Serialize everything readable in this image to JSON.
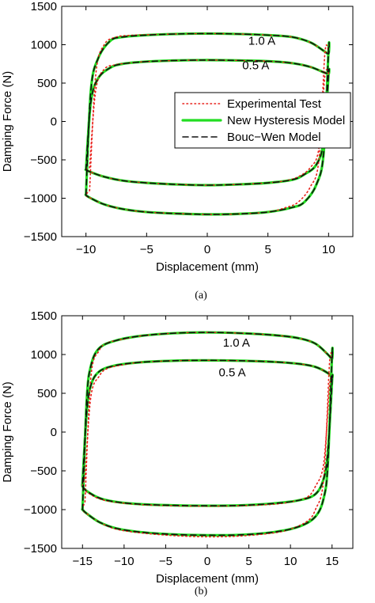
{
  "chart_data": [
    {
      "type": "line",
      "caption": "(a)",
      "xlabel": "Displacement (mm)",
      "ylabel": "Damping Force (N)",
      "xlim": [
        -12,
        12
      ],
      "ylim": [
        -1500,
        1500
      ],
      "xticks": [
        -10,
        -5,
        0,
        5,
        10
      ],
      "yticks": [
        -1500,
        -1000,
        -500,
        0,
        500,
        1000,
        1500
      ],
      "grid": false,
      "legend": {
        "placement": "right-middle",
        "entries": [
          "Experimental Test",
          "New Hysteresis Model",
          "Bouc−Wen Model"
        ]
      },
      "annotations": [
        {
          "text": "1.0 A",
          "x": 4.5,
          "y": 1000
        },
        {
          "text": "0.5 A",
          "x": 4.0,
          "y": 680
        }
      ],
      "colors": {
        "experimental": "#e8221b",
        "new_model": "#22dd22",
        "bouc_wen": "#111111"
      },
      "series": [
        {
          "name": "New Hysteresis Model",
          "current": "1.0 A",
          "upper": {
            "x": [
              -10,
              -9.6,
              -9,
              -8,
              -7,
              -5,
              -2.5,
              0,
              2.5,
              5,
              7,
              8.5,
              9.6,
              10
            ],
            "y": [
              -950,
              400,
              820,
              1050,
              1100,
              1125,
              1140,
              1145,
              1140,
              1125,
              1100,
              1030,
              920,
              880
            ]
          },
          "lower": {
            "x": [
              10,
              9.6,
              9,
              8,
              7,
              5,
              2.5,
              0,
              -2.5,
              -5,
              -7,
              -8.5,
              -9.6,
              -10
            ],
            "y": [
              950,
              -400,
              -820,
              -1050,
              -1120,
              -1180,
              -1205,
              -1210,
              -1200,
              -1180,
              -1140,
              -1080,
              -1000,
              -960
            ]
          }
        },
        {
          "name": "New Hysteresis Model",
          "current": "0.5 A",
          "upper": {
            "x": [
              -10,
              -9.6,
              -9,
              -8,
              -7,
              -5,
              -2.5,
              0,
              2.5,
              5,
              7,
              8.5,
              9.6,
              10
            ],
            "y": [
              -630,
              250,
              560,
              700,
              750,
              780,
              795,
              800,
              795,
              785,
              760,
              710,
              640,
              620
            ]
          },
          "lower": {
            "x": [
              10,
              9.6,
              9,
              8,
              7,
              5,
              2.5,
              0,
              -2.5,
              -5,
              -7,
              -8.5,
              -9.6,
              -10
            ],
            "y": [
              620,
              -250,
              -560,
              -690,
              -760,
              -800,
              -820,
              -830,
              -820,
              -800,
              -770,
              -720,
              -660,
              -630
            ]
          }
        },
        {
          "name": "Experimental Test",
          "current": "1.0 A",
          "upper": {
            "x": [
              -9.7,
              -9.2,
              -8.5,
              -7.5,
              -6.5,
              -5,
              -2.5,
              0,
              2.5,
              5,
              7,
              8.5,
              9.6,
              10
            ],
            "y": [
              -900,
              600,
              1000,
              1100,
              1120,
              1130,
              1140,
              1145,
              1140,
              1125,
              1100,
              1030,
              920,
              880
            ]
          },
          "lower": {
            "x": [
              9.7,
              9.2,
              8.5,
              7.5,
              6.5,
              5,
              2.5,
              0,
              -2.5,
              -5,
              -7,
              -8.5,
              -9.6,
              -10
            ],
            "y": [
              900,
              -500,
              -850,
              -1050,
              -1120,
              -1180,
              -1205,
              -1210,
              -1200,
              -1180,
              -1140,
              -1080,
              -1000,
              -960
            ]
          }
        },
        {
          "name": "Experimental Test",
          "current": "0.5 A",
          "upper": {
            "x": [
              -9.7,
              -9.2,
              -8.5,
              -7.5,
              -6.5,
              -5,
              -2.5,
              0,
              2.5,
              5,
              7,
              8.5,
              9.6,
              10
            ],
            "y": [
              -600,
              400,
              680,
              740,
              760,
              780,
              795,
              800,
              795,
              785,
              760,
              710,
              640,
              620
            ]
          },
          "lower": {
            "x": [
              9.7,
              9.2,
              8.5,
              7.5,
              6.5,
              5,
              2.5,
              0,
              -2.5,
              -5,
              -7,
              -8.5,
              -9.6,
              -10
            ],
            "y": [
              600,
              -350,
              -600,
              -720,
              -770,
              -800,
              -820,
              -830,
              -820,
              -800,
              -770,
              -720,
              -660,
              -630
            ]
          }
        },
        {
          "name": "Bouc−Wen Model",
          "current": "1.0 A",
          "upper": {
            "x": [
              -10,
              -9.6,
              -9,
              -8,
              -7,
              -5,
              -2.5,
              0,
              2.5,
              5,
              7,
              8.5,
              9.6,
              10
            ],
            "y": [
              -950,
              400,
              820,
              1050,
              1100,
              1125,
              1140,
              1145,
              1140,
              1125,
              1100,
              1030,
              920,
              880
            ]
          },
          "lower": {
            "x": [
              10,
              9.6,
              9,
              8,
              7,
              5,
              2.5,
              0,
              -2.5,
              -5,
              -7,
              -8.5,
              -9.6,
              -10
            ],
            "y": [
              950,
              -400,
              -820,
              -1050,
              -1120,
              -1180,
              -1205,
              -1210,
              -1200,
              -1180,
              -1140,
              -1080,
              -1000,
              -960
            ]
          }
        },
        {
          "name": "Bouc−Wen Model",
          "current": "0.5 A",
          "upper": {
            "x": [
              -10,
              -9.6,
              -9,
              -8,
              -7,
              -5,
              -2.5,
              0,
              2.5,
              5,
              7,
              8.5,
              9.6,
              10
            ],
            "y": [
              -630,
              250,
              560,
              700,
              750,
              780,
              795,
              800,
              795,
              785,
              760,
              710,
              640,
              620
            ]
          },
          "lower": {
            "x": [
              10,
              9.6,
              9,
              8,
              7,
              5,
              2.5,
              0,
              -2.5,
              -5,
              -7,
              -8.5,
              -9.6,
              -10
            ],
            "y": [
              620,
              -250,
              -560,
              -690,
              -760,
              -800,
              -820,
              -830,
              -820,
              -800,
              -770,
              -720,
              -660,
              -630
            ]
          }
        }
      ]
    },
    {
      "type": "line",
      "caption": "(b)",
      "xlabel": "Displacement (mm)",
      "ylabel": "Damping Force (N)",
      "xlim": [
        -17.5,
        17.5
      ],
      "ylim": [
        -1500,
        1500
      ],
      "xticks": [
        -15,
        -10,
        -5,
        0,
        5,
        10,
        15
      ],
      "yticks": [
        -1500,
        -1000,
        -500,
        0,
        500,
        1000,
        1500
      ],
      "grid": false,
      "annotations": [
        {
          "text": "1.0 A",
          "x": 3.5,
          "y": 1100
        },
        {
          "text": "0.5 A",
          "x": 3.0,
          "y": 720
        }
      ],
      "colors": {
        "experimental": "#e8221b",
        "new_model": "#22dd22",
        "bouc_wen": "#111111"
      },
      "series": [
        {
          "name": "New Hysteresis Model",
          "current": "1.0 A",
          "upper": {
            "x": [
              -15,
              -14.5,
              -14,
              -13,
              -11,
              -8,
              -4,
              0,
              4,
              8,
              11,
              13,
              14.5,
              15
            ],
            "y": [
              -1000,
              400,
              850,
              1080,
              1180,
              1240,
              1275,
              1285,
              1275,
              1250,
              1210,
              1140,
              1000,
              940
            ]
          },
          "lower": {
            "x": [
              15,
              14.5,
              14,
              13,
              11,
              8,
              4,
              0,
              -4,
              -8,
              -11,
              -13,
              -14.5,
              -15
            ],
            "y": [
              1000,
              -400,
              -850,
              -1090,
              -1220,
              -1290,
              -1325,
              -1330,
              -1320,
              -1290,
              -1240,
              -1160,
              -1050,
              -1000
            ]
          }
        },
        {
          "name": "New Hysteresis Model",
          "current": "0.5 A",
          "upper": {
            "x": [
              -15,
              -14.5,
              -14,
              -13,
              -11,
              -8,
              -4,
              0,
              4,
              8,
              11,
              13,
              14.5,
              15
            ],
            "y": [
              -660,
              250,
              600,
              780,
              860,
              900,
              920,
              925,
              920,
              905,
              880,
              840,
              760,
              700
            ]
          },
          "lower": {
            "x": [
              15,
              14.5,
              14,
              13,
              11,
              8,
              4,
              0,
              -4,
              -8,
              -11,
              -13,
              -14.5,
              -15
            ],
            "y": [
              660,
              -250,
              -600,
              -800,
              -880,
              -920,
              -945,
              -950,
              -945,
              -930,
              -900,
              -850,
              -760,
              -700
            ]
          }
        },
        {
          "name": "Experimental Test",
          "current": "1.0 A",
          "upper": {
            "x": [
              -14.7,
              -14,
              -13,
              -12,
              -10,
              -8,
              -4,
              0,
              4,
              8,
              11,
              13,
              14.5,
              15
            ],
            "y": [
              -900,
              700,
              1050,
              1150,
              1200,
              1240,
              1275,
              1285,
              1275,
              1250,
              1210,
              1140,
              1000,
              940
            ]
          },
          "lower": {
            "x": [
              14.7,
              14,
              13,
              12,
              10,
              8,
              4,
              0,
              -4,
              -8,
              -11,
              -13,
              -14.5,
              -15
            ],
            "y": [
              900,
              -600,
              -1000,
              -1150,
              -1250,
              -1300,
              -1340,
              -1350,
              -1335,
              -1300,
              -1250,
              -1160,
              -1050,
              -1000
            ]
          }
        },
        {
          "name": "Experimental Test",
          "current": "0.5 A",
          "upper": {
            "x": [
              -14.7,
              -14,
              -13,
              -12,
              -10,
              -8,
              -4,
              0,
              4,
              8,
              11,
              13,
              14.5,
              15
            ],
            "y": [
              -600,
              450,
              720,
              820,
              870,
              900,
              920,
              925,
              920,
              905,
              880,
              840,
              760,
              700
            ]
          },
          "lower": {
            "x": [
              14.7,
              14,
              13,
              12,
              10,
              8,
              4,
              0,
              -4,
              -8,
              -11,
              -13,
              -14.5,
              -15
            ],
            "y": [
              600,
              -400,
              -700,
              -840,
              -900,
              -930,
              -950,
              -955,
              -950,
              -935,
              -905,
              -860,
              -770,
              -700
            ]
          }
        },
        {
          "name": "Bouc−Wen Model",
          "current": "1.0 A",
          "upper": {
            "x": [
              -15,
              -14.5,
              -14,
              -13,
              -11,
              -8,
              -4,
              0,
              4,
              8,
              11,
              13,
              14.5,
              15
            ],
            "y": [
              -1000,
              400,
              850,
              1080,
              1180,
              1240,
              1275,
              1285,
              1275,
              1250,
              1210,
              1140,
              1000,
              940
            ]
          },
          "lower": {
            "x": [
              15,
              14.5,
              14,
              13,
              11,
              8,
              4,
              0,
              -4,
              -8,
              -11,
              -13,
              -14.5,
              -15
            ],
            "y": [
              1000,
              -400,
              -850,
              -1090,
              -1220,
              -1290,
              -1325,
              -1330,
              -1320,
              -1290,
              -1240,
              -1160,
              -1050,
              -1000
            ]
          }
        },
        {
          "name": "Bouc−Wen Model",
          "current": "0.5 A",
          "upper": {
            "x": [
              -15,
              -14.5,
              -14,
              -13,
              -11,
              -8,
              -4,
              0,
              4,
              8,
              11,
              13,
              14.5,
              15
            ],
            "y": [
              -660,
              250,
              600,
              780,
              860,
              900,
              920,
              925,
              920,
              905,
              880,
              840,
              760,
              700
            ]
          },
          "lower": {
            "x": [
              15,
              14.5,
              14,
              13,
              11,
              8,
              4,
              0,
              -4,
              -8,
              -11,
              -13,
              -14.5,
              -15
            ],
            "y": [
              660,
              -250,
              -600,
              -800,
              -880,
              -920,
              -945,
              -950,
              -945,
              -930,
              -900,
              -850,
              -760,
              -700
            ]
          }
        }
      ]
    }
  ]
}
